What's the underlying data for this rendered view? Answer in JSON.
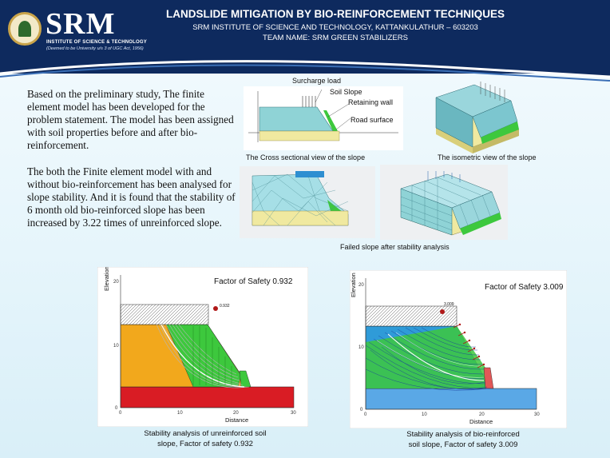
{
  "header": {
    "title": "LANDSLIDE MITIGATION BY BIO-REINFORCEMENT TECHNIQUES",
    "subtitle": "SRM INSTITUTE OF SCIENCE AND TECHNOLOGY, KATTANKULATHUR – 603203",
    "team": "TEAM NAME: SRM GREEN STABILIZERS",
    "logo": {
      "name": "SRM",
      "subtitle": "INSTITUTE OF SCIENCE & TECHNOLOGY",
      "tagline": "(Deemed to be University u/s 3 of UGC Act, 1956)"
    }
  },
  "body": {
    "paragraph1": "Based on the preliminary study, The finite element model has been developed for the problem statement. The model has been assigned with soil properties before and after bio-reinforcement.",
    "paragraph2": "The both the Finite element model with and without bio-reinforcement has been analysed for slope stability. And it is found that the stability of 6 month old bio-reinforced slope has been increased by 3.22 times of unreinforced slope."
  },
  "figures": {
    "cross_section": {
      "labels": {
        "surcharge": "Surcharge load",
        "soil_slope": "Soil Slope",
        "retaining_wall": "Retaining wall",
        "road_surface": "Road surface"
      },
      "caption": "The Cross sectional view of the slope"
    },
    "isometric": {
      "caption": "The isometric view of the slope"
    },
    "failed": {
      "caption": "Failed slope after stability analysis"
    }
  },
  "stability": {
    "unreinforced": {
      "fos_label": "Factor of Safety 0.932",
      "slip_value": "0.932",
      "caption_line1": "Stability analysis of unreinforced soil",
      "caption_line2": "slope, Factor of safety 0.932",
      "xlabel": "Distance",
      "ylabel": "Elevation",
      "x_ticks": [
        "0",
        "10",
        "20",
        "30"
      ],
      "y_ticks": [
        "0",
        "10",
        "20"
      ]
    },
    "reinforced": {
      "fos_label": "Factor of Safety 3.009",
      "slip_value": "3.009",
      "caption_line1": "Stability analysis of bio-reinforced",
      "caption_line2": "soil slope, Factor of safety  3.009",
      "xlabel": "Distance",
      "ylabel": "Elevation",
      "x_ticks": [
        "0",
        "10",
        "20",
        "30"
      ],
      "y_ticks": [
        "0",
        "10",
        "20"
      ]
    }
  },
  "colors": {
    "header": "#0e2a5e",
    "slope_soil": "#8fd3d6",
    "road_base": "#f0e9a0",
    "unreinforced_soil": "#f2a81c",
    "reinforced_soil": "#2f9bd8",
    "foundation_red": "#d91c24",
    "vegetation_green": "#3dc83d"
  }
}
